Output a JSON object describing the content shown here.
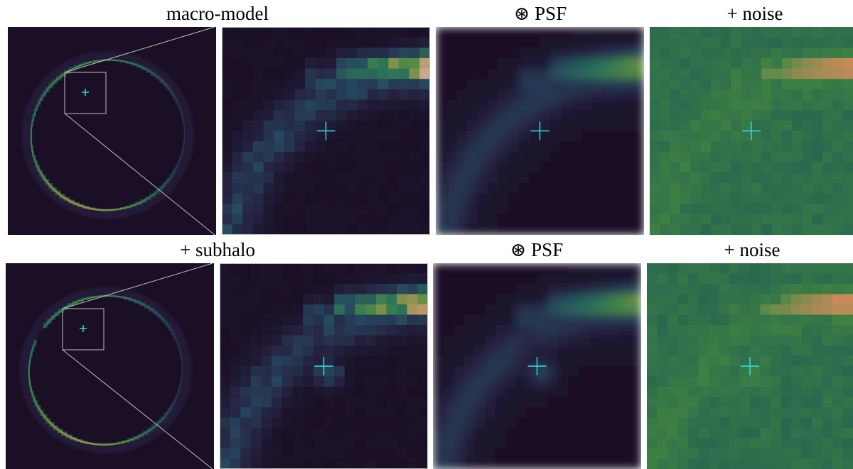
{
  "rows": [
    {
      "titles": {
        "image": "macro-model",
        "psf": "⊛ PSF",
        "noise": "+ noise"
      },
      "has_subhalo": false
    },
    {
      "titles": {
        "image": "+ subhalo",
        "psf": "⊛ PSF",
        "noise": "+ noise"
      },
      "has_subhalo": true
    }
  ],
  "colors": {
    "background_dark": "#1a0f25",
    "marker": "#38e0e6",
    "inset_box": "#bdbdbd",
    "arc_green": "#2f8a57",
    "arc_pink": "#f2d6e4",
    "noise_green": "#2e6e4c",
    "noise_orange": "#c98a5a"
  },
  "icons": {
    "marker": "crosshair-icon"
  }
}
